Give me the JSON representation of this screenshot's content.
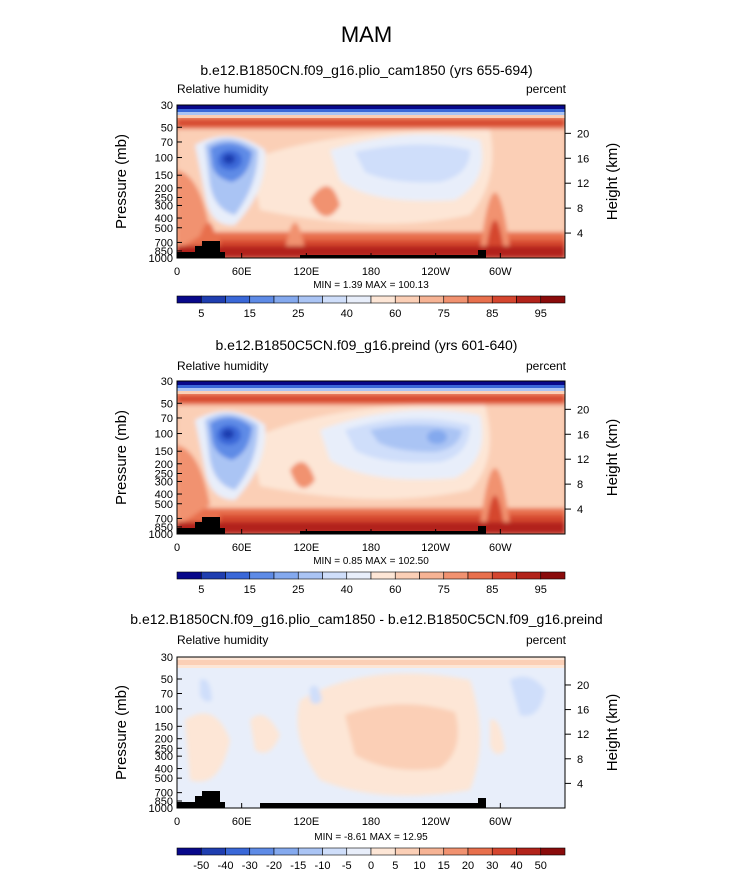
{
  "figure": {
    "title": "MAM"
  },
  "chart_data": [
    {
      "type": "heatmap",
      "title": "b.e12.B1850CN.f09_g16.plio_cam1850 (yrs 655-694)",
      "left_label": "Relative humidity",
      "right_label": "percent",
      "ylabel": "Pressure (mb)",
      "ylabel_right": "Height (km)",
      "x_ticks": [
        "0",
        "60E",
        "120E",
        "180",
        "120W",
        "60W"
      ],
      "y_ticks": [
        "30",
        "50",
        "70",
        "100",
        "150",
        "200",
        "250",
        "300",
        "400",
        "500",
        "700",
        "850",
        "1000"
      ],
      "height_ticks": [
        "20",
        "16",
        "12",
        "8",
        "4"
      ],
      "stats": "MIN =    1.39   MAX = 100.13",
      "min": 1.39,
      "max": 100.13,
      "colorbar_levels": [
        5,
        10,
        15,
        20,
        25,
        30,
        40,
        50,
        60,
        70,
        75,
        80,
        85,
        90,
        95
      ],
      "colorbar_labels": [
        "5",
        "15",
        "25",
        "40",
        "60",
        "75",
        "85",
        "95"
      ],
      "colors": [
        "#08088a",
        "#1f3eb0",
        "#3a68d8",
        "#5e8be6",
        "#84a9ee",
        "#aac4f4",
        "#cfdefa",
        "#e8eefa",
        "#fde6d6",
        "#fbcfb6",
        "#f6b394",
        "#f19270",
        "#e8704d",
        "#d5462f",
        "#b2231a",
        "#8a0b0b"
      ]
    },
    {
      "type": "heatmap",
      "title": "b.e12.B1850C5CN.f09_g16.preind (yrs 601-640)",
      "left_label": "Relative humidity",
      "right_label": "percent",
      "ylabel": "Pressure (mb)",
      "ylabel_right": "Height (km)",
      "x_ticks": [
        "0",
        "60E",
        "120E",
        "180",
        "120W",
        "60W"
      ],
      "y_ticks": [
        "30",
        "50",
        "70",
        "100",
        "150",
        "200",
        "250",
        "300",
        "400",
        "500",
        "700",
        "850",
        "1000"
      ],
      "height_ticks": [
        "20",
        "16",
        "12",
        "8",
        "4"
      ],
      "stats": "MIN =    0.85   MAX = 102.50",
      "min": 0.85,
      "max": 102.5,
      "colorbar_levels": [
        5,
        10,
        15,
        20,
        25,
        30,
        40,
        50,
        60,
        70,
        75,
        80,
        85,
        90,
        95
      ],
      "colorbar_labels": [
        "5",
        "15",
        "25",
        "40",
        "60",
        "75",
        "85",
        "95"
      ],
      "colors": [
        "#08088a",
        "#1f3eb0",
        "#3a68d8",
        "#5e8be6",
        "#84a9ee",
        "#aac4f4",
        "#cfdefa",
        "#e8eefa",
        "#fde6d6",
        "#fbcfb6",
        "#f6b394",
        "#f19270",
        "#e8704d",
        "#d5462f",
        "#b2231a",
        "#8a0b0b"
      ]
    },
    {
      "type": "heatmap",
      "title": "b.e12.B1850CN.f09_g16.plio_cam1850 - b.e12.B1850C5CN.f09_g16.preind",
      "left_label": "Relative humidity",
      "right_label": "percent",
      "ylabel": "Pressure (mb)",
      "ylabel_right": "Height (km)",
      "x_ticks": [
        "0",
        "60E",
        "120E",
        "180",
        "120W",
        "60W"
      ],
      "y_ticks": [
        "30",
        "50",
        "70",
        "100",
        "150",
        "200",
        "250",
        "300",
        "400",
        "500",
        "700",
        "850",
        "1000"
      ],
      "height_ticks": [
        "20",
        "16",
        "12",
        "8",
        "4"
      ],
      "stats": "MIN =   -8.61   MAX =  12.95",
      "min": -8.61,
      "max": 12.95,
      "colorbar_levels": [
        -50,
        -40,
        -30,
        -20,
        -15,
        -10,
        -5,
        0,
        5,
        10,
        15,
        20,
        30,
        40,
        50
      ],
      "colorbar_labels": [
        "-50",
        "-40",
        "-30",
        "-20",
        "-15",
        "-10",
        "-5",
        "0",
        "5",
        "10",
        "15",
        "20",
        "30",
        "40",
        "50"
      ],
      "colors": [
        "#08088a",
        "#1f3eb0",
        "#3a68d8",
        "#5e8be6",
        "#84a9ee",
        "#aac4f4",
        "#cfdefa",
        "#e8eefa",
        "#fde6d6",
        "#fbcfb6",
        "#f6b394",
        "#f19270",
        "#e8704d",
        "#d5462f",
        "#b2231a",
        "#8a0b0b"
      ]
    }
  ]
}
